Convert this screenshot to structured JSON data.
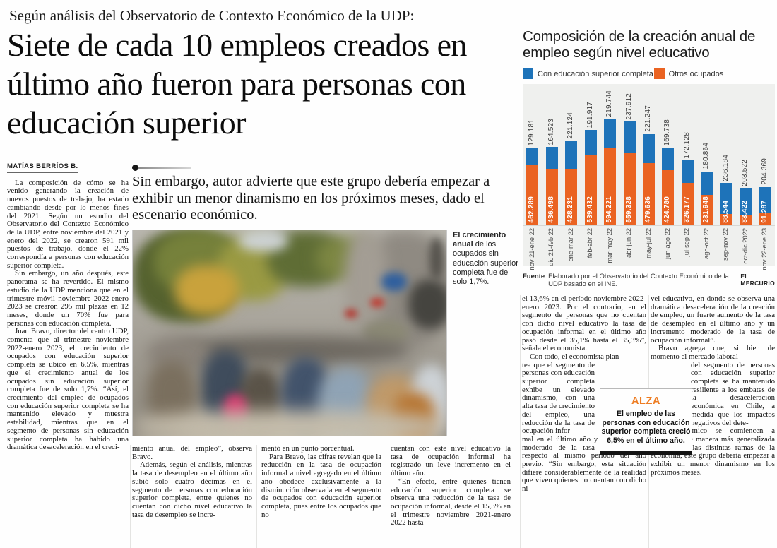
{
  "kicker": "Según análisis del Observatorio de Contexto Económico de la UDP:",
  "headline": "Siete de cada 10 empleos creados en último año fueron para personas con educación superior",
  "byline": "MATÍAS BERRÍOS B.",
  "deck": "Sin embargo, autor advierte que este grupo debería empezar a exhibir un menor dinamismo en los próximos meses, dado el escenario económico.",
  "photo_caption": {
    "lead": "El crecimiento anual",
    "rest": " de los ocupados sin educación superior completa fue de solo 1,7%."
  },
  "article": {
    "col1": [
      {
        "indent": true,
        "text": "La composición de cómo se ha venido generando la creación de nuevos puestos de trabajo, ha estado cambiando desde por lo menos fines del 2021. Según un estudio del Observatorio del Contexto Económico de la UDP, entre noviembre del 2021 y enero del 2022, se crearon 591 mil puestos de trabajo, donde el 22% correspondía a personas con educación superior completa."
      },
      {
        "indent": true,
        "text": "Sin embargo, un año después, este panorama se ha revertido. El mismo estudio de la UDP menciona que en el trimestre móvil noviembre 2022-enero 2023 se crearon 295 mil plazas en 12 meses, donde un 70% fue para personas con educación completa."
      },
      {
        "indent": true,
        "text": "Juan Bravo, director del centro UDP, comenta que al trimestre noviembre 2022-enero 2023, el crecimiento de ocupados con educación superior completa se ubicó en 6,5%, mientras que el crecimiento anual de los ocupados sin educación superior completa fue de solo 1,7%. “Así, el crecimiento del empleo de ocupados con educación superior completa se ha mantenido elevado y muestra estabilidad, mientras que en el segmento de personas sin educación superior completa ha habido una dramática desaceleración en el creci-"
      }
    ],
    "col2": [
      {
        "indent": false,
        "text": "miento anual del empleo”, observa Bravo."
      },
      {
        "indent": true,
        "text": "Además, según el análisis, mientras la tasa de desempleo en el último año subió solo cuatro décimas en el segmento de personas con educación superior completa, entre quienes no cuentan con dicho nivel educativo la tasa de desempleo se incre-"
      }
    ],
    "col3": [
      {
        "indent": false,
        "text": "mentó en un punto porcentual."
      },
      {
        "indent": true,
        "text": "Para Bravo, las cifras revelan que la reducción en la tasa de ocupación informal a nivel agregado en el último año obedece exclusivamente a la disminución observada en el segmento de ocupados con educación superior completa, pues entre los ocupados que no"
      }
    ],
    "col4": [
      {
        "indent": false,
        "text": "cuentan con este nivel educativo la tasa de ocupación informal ha registrado un leve incremento en el último año."
      },
      {
        "indent": true,
        "text": "“En efecto, entre quienes tienen educación superior completa se observa una reducción de la tasa de ocupación informal, desde el 15,3% en el trimestre noviembre 2021-enero 2022 hasta"
      }
    ],
    "col5": {
      "a": "el 13,6% en el período noviembre 2022-enero 2023. Por el contrario, en el segmento de personas que no cuentan con dicho nivel educativo la tasa de ocupación informal en el último año pasó desde el 35,1% hasta el 35,3%”, señala el economista.",
      "a2": "Con todo, el economista plan-",
      "narrow": "tea que el segmento de personas con educación superior completa exhibe un elevado dinamismo, con una alta tasa de crecimiento del empleo, una reducción de la tasa de ocupación infor-",
      "b": "mal en el último año y un incremento moderado de la tasa de desempleo respecto al mismo período del año previo. “Sin embargo, esta situación difiere considerablemente de la realidad que viven quienes no cuentan con dicho ni-"
    },
    "col6": {
      "a": "vel educativo, en donde se observa una dramática desaceleración de la creación de empleo, un fuerte aumento de la tasa de desempleo en el último año y un incremento moderado de la tasa de ocupación informal”.",
      "a2": "Bravo agrega que, si bien de momento el mercado laboral",
      "narrow": "del segmento de personas con educación superior completa se ha mantenido resiliente a los embates de la desaceleración económica en Chile, a medida que los impactos negativos del dete-",
      "b": "rioro económico se comiencen a manifestar de manera más generalizada a través de las distintas ramas de la economía, este grupo debería empezar a exhibir un menor dinamismo en los próximos meses."
    }
  },
  "alza": {
    "title": "ALZA",
    "text": "El empleo de las personas con educación superior completa creció 6,5% en el último año.",
    "accent_color": "#ee7d23"
  },
  "chart_data": {
    "type": "bar",
    "stacked": true,
    "title": "Composición de la creación anual de empleo según nivel educativo",
    "legend_position": "top",
    "grid": false,
    "categories": [
      "nov 21-ene 22",
      "dic 21-feb 22",
      "ene-mar 22",
      "feb-abr 22",
      "mar-may 22",
      "abr-jun 22",
      "may-jul 22",
      "jun-ago 22",
      "jul-sep 22",
      "ago-oct 22",
      "sep-nov 22",
      "oct-dic 2022",
      "nov 22-ene 23"
    ],
    "series": [
      {
        "name": "Con educación superior completa",
        "color": "#1e73b9",
        "position": "top",
        "values": [
          129181,
          164523,
          221124,
          191917,
          219744,
          237912,
          221247,
          169738,
          172128,
          180864,
          236184,
          203522,
          204369
        ],
        "labels": [
          "129.181",
          "164.523",
          "221.124",
          "191.917",
          "219.744",
          "237.912",
          "221.247",
          "169.738",
          "172.128",
          "180.864",
          "236.184",
          "203.522",
          "204.369"
        ]
      },
      {
        "name": "Otros ocupados",
        "color": "#ea6322",
        "position": "bottom",
        "values": [
          462289,
          436498,
          428231,
          539432,
          594221,
          559328,
          479636,
          424780,
          326177,
          231948,
          88544,
          83422,
          91287
        ],
        "labels": [
          "462.289",
          "436.498",
          "428.231",
          "539.432",
          "594.221",
          "559.328",
          "479.636",
          "424.780",
          "326.177",
          "231.948",
          "88.544",
          "83.422",
          "91.287"
        ]
      }
    ],
    "source_label": "Fuente",
    "source": "Elaborado por el Observatorio del Contexto Económico de la UDP basado en el INE.",
    "credit": "EL MERCURIO"
  }
}
